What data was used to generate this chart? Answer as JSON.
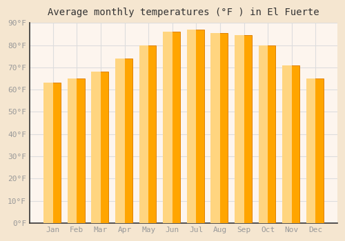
{
  "title": "Average monthly temperatures (°F ) in El Fuerte",
  "months": [
    "Jan",
    "Feb",
    "Mar",
    "Apr",
    "May",
    "Jun",
    "Jul",
    "Aug",
    "Sep",
    "Oct",
    "Nov",
    "Dec"
  ],
  "values": [
    63,
    65,
    68,
    74,
    80,
    86,
    87,
    85.5,
    84.5,
    80,
    71,
    65
  ],
  "bar_color_main": "#FFA500",
  "bar_color_light": "#FFD580",
  "bar_color_dark": "#E08000",
  "ylim": [
    0,
    90
  ],
  "yticks": [
    0,
    10,
    20,
    30,
    40,
    50,
    60,
    70,
    80,
    90
  ],
  "ytick_labels": [
    "0°F",
    "10°F",
    "20°F",
    "30°F",
    "40°F",
    "50°F",
    "60°F",
    "70°F",
    "80°F",
    "90°F"
  ],
  "background_color": "#f5e6d0",
  "plot_bg_color": "#fdf5ee",
  "grid_color": "#dddddd",
  "title_fontsize": 10,
  "tick_fontsize": 8,
  "bar_width": 0.65,
  "font_family": "monospace",
  "tick_color": "#999999",
  "spine_color": "#333333"
}
